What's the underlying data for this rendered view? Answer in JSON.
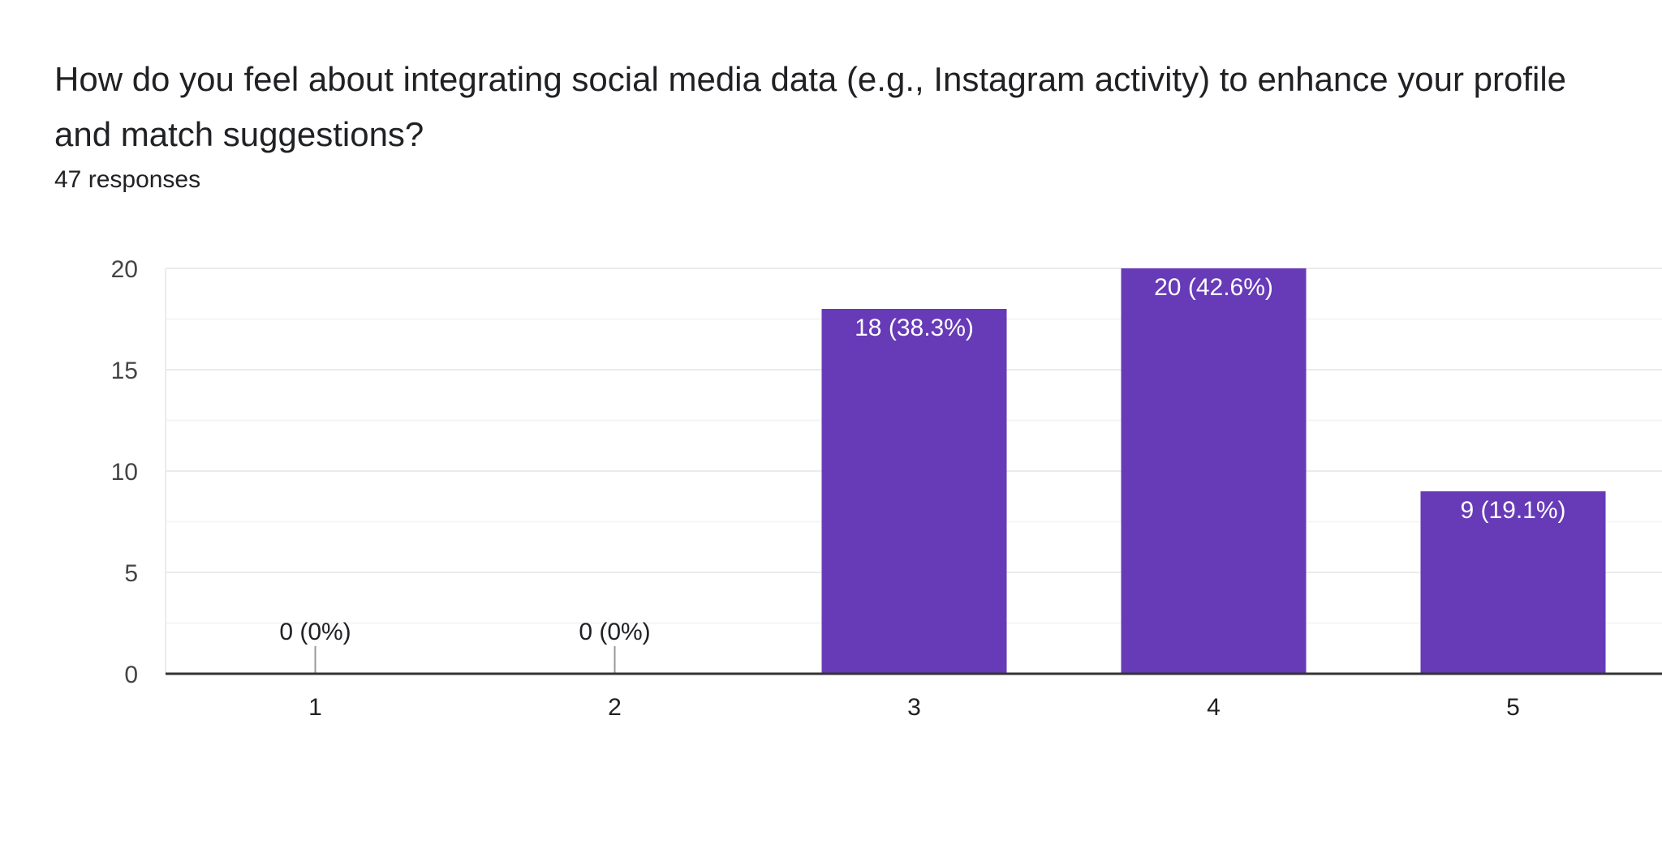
{
  "header": {
    "question": "How do you feel about integrating social media data (e.g., Instagram activity) to enhance your profile and match suggestions?",
    "response_count": "47 responses"
  },
  "colors": {
    "bar": "#673ab7",
    "text": "#202124",
    "axis_text": "#444444",
    "grid": "#ebebeb",
    "minor_grid": "#f5f5f5",
    "baseline": "#333333"
  },
  "chart_data": {
    "type": "bar",
    "categories": [
      "1",
      "2",
      "3",
      "4",
      "5"
    ],
    "values": [
      0,
      0,
      18,
      20,
      9
    ],
    "data_labels": [
      "0 (0%)",
      "0 (0%)",
      "18 (38.3%)",
      "20 (42.6%)",
      "9 (19.1%)"
    ],
    "yticks": [
      0,
      5,
      10,
      15,
      20
    ],
    "ylim": [
      0,
      20
    ],
    "grid": true,
    "legend": "none"
  }
}
